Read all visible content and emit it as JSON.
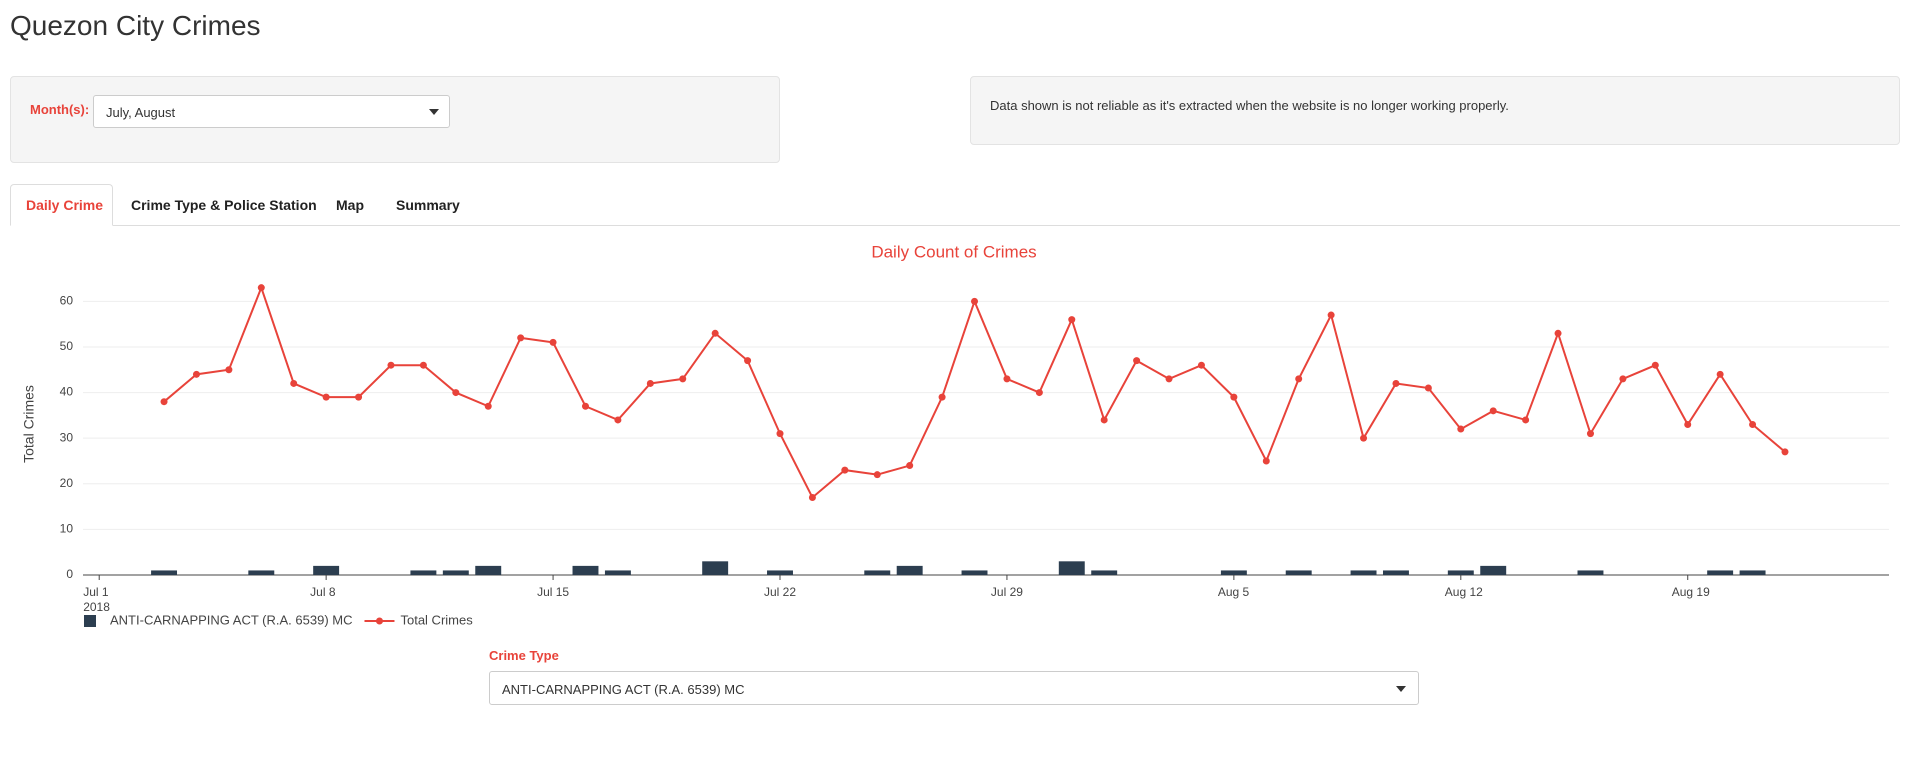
{
  "header": {
    "title": "Quezon City Crimes"
  },
  "month_filter": {
    "label": "Month(s):",
    "value": "July, August"
  },
  "notice": "Data shown is not reliable as it's extracted when the website is no longer working properly.",
  "tabs": [
    "Daily Crime",
    "Crime Type & Police Station",
    "Map",
    "Summary"
  ],
  "chart_data": {
    "type": "combo",
    "title": "Daily Count of Crimes",
    "y_label": "Total Crimes",
    "x": [
      "2018-07-03",
      "2018-07-04",
      "2018-07-05",
      "2018-07-06",
      "2018-07-07",
      "2018-07-08",
      "2018-07-09",
      "2018-07-10",
      "2018-07-11",
      "2018-07-12",
      "2018-07-13",
      "2018-07-14",
      "2018-07-15",
      "2018-07-16",
      "2018-07-17",
      "2018-07-18",
      "2018-07-19",
      "2018-07-20",
      "2018-07-21",
      "2018-07-22",
      "2018-07-23",
      "2018-07-24",
      "2018-07-25",
      "2018-07-26",
      "2018-07-27",
      "2018-07-28",
      "2018-07-29",
      "2018-07-30",
      "2018-07-31",
      "2018-08-01",
      "2018-08-02",
      "2018-08-03",
      "2018-08-04",
      "2018-08-05",
      "2018-08-06",
      "2018-08-07",
      "2018-08-08",
      "2018-08-09",
      "2018-08-10",
      "2018-08-11",
      "2018-08-12",
      "2018-08-13",
      "2018-08-14",
      "2018-08-15",
      "2018-08-16",
      "2018-08-17",
      "2018-08-18",
      "2018-08-19",
      "2018-08-20",
      "2018-08-21",
      "2018-08-22"
    ],
    "series": [
      {
        "name": "ANTI-CARNAPPING ACT (R.A. 6539) MC",
        "type": "bar",
        "color": "#2c3e50",
        "values": [
          1,
          0,
          0,
          1,
          0,
          2,
          0,
          0,
          1,
          1,
          2,
          0,
          0,
          2,
          1,
          0,
          0,
          3,
          0,
          1,
          0,
          0,
          1,
          2,
          0,
          1,
          0,
          0,
          3,
          1,
          0,
          0,
          0,
          1,
          0,
          1,
          0,
          1,
          1,
          0,
          1,
          2,
          0,
          0,
          1,
          0,
          0,
          0,
          1,
          1,
          0
        ]
      },
      {
        "name": "Total Crimes",
        "type": "line",
        "color": "#e8433a",
        "values": [
          38,
          44,
          45,
          63,
          42,
          39,
          39,
          46,
          46,
          40,
          37,
          52,
          51,
          37,
          34,
          42,
          43,
          53,
          47,
          31,
          17,
          23,
          22,
          24,
          39,
          60,
          43,
          40,
          56,
          34,
          47,
          43,
          46,
          39,
          25,
          43,
          57,
          30,
          42,
          41,
          32,
          36,
          34,
          53,
          31,
          43,
          46,
          33,
          44,
          33,
          27
        ]
      }
    ],
    "xlim": [
      "2018-06-30T12:00:00Z",
      "2018-08-25T05:00:00Z"
    ],
    "xticks": [
      {
        "value": "2018-07-01",
        "label": "Jul 1\n2018"
      },
      {
        "value": "2018-07-08",
        "label": "Jul 8"
      },
      {
        "value": "2018-07-15",
        "label": "Jul 15"
      },
      {
        "value": "2018-07-22",
        "label": "Jul 22"
      },
      {
        "value": "2018-07-29",
        "label": "Jul 29"
      },
      {
        "value": "2018-08-05",
        "label": "Aug 5"
      },
      {
        "value": "2018-08-12",
        "label": "Aug 12"
      },
      {
        "value": "2018-08-19",
        "label": "Aug 19"
      }
    ],
    "ylim": [
      0,
      66
    ],
    "yticks": [
      0,
      10,
      20,
      30,
      40,
      50,
      60
    ],
    "grid": true
  },
  "crime_filter": {
    "label": "Crime Type",
    "value": "ANTI-CARNAPPING ACT (R.A. 6539) MC"
  }
}
